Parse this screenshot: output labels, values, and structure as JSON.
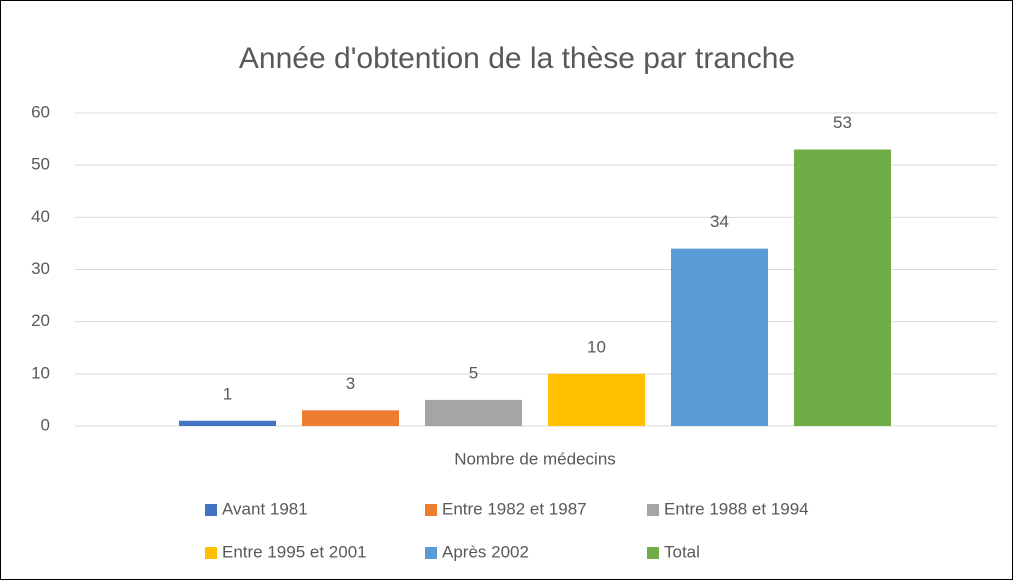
{
  "chart_data": {
    "type": "bar",
    "title": "Année d'obtention de la thèse par tranche",
    "categories": [
      "Nombre de médecins"
    ],
    "series": [
      {
        "name": "Avant 1981",
        "color": "#4472c4",
        "values": [
          1
        ]
      },
      {
        "name": "Entre 1982 et 1987",
        "color": "#ed7d31",
        "values": [
          3
        ]
      },
      {
        "name": "Entre 1988 et 1994",
        "color": "#a5a5a5",
        "values": [
          5
        ]
      },
      {
        "name": "Entre 1995 et 2001",
        "color": "#ffc000",
        "values": [
          10
        ]
      },
      {
        "name": "Après 2002",
        "color": "#5b9bd5",
        "values": [
          34
        ]
      },
      {
        "name": "Total",
        "color": "#70ad47",
        "values": [
          53
        ]
      }
    ],
    "ylim": [
      0,
      60
    ],
    "yticks": [
      0,
      10,
      20,
      30,
      40,
      50,
      60
    ],
    "grid": true,
    "legend": "bottom"
  }
}
